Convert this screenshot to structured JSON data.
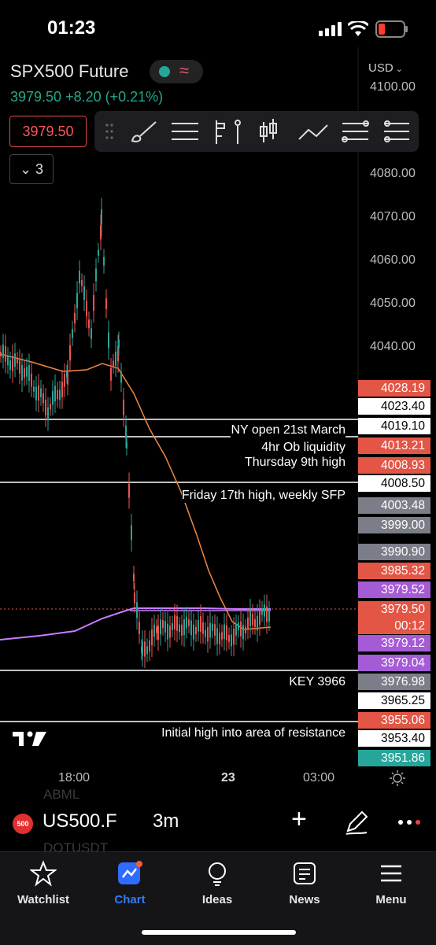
{
  "status_bar": {
    "time": "01:23"
  },
  "header": {
    "symbol": "SPX500 Future",
    "price": "3979.50",
    "change": "+8.20 (+0.21%)",
    "currency": "USD",
    "price_box": "3979.50",
    "indicator_count": "3"
  },
  "toolbar": {
    "icons": [
      "drag-handle-icon",
      "brush-icon",
      "lines-icon",
      "pitchfork-icon",
      "candles-icon",
      "pattern-icon",
      "fib-icon",
      "gann-icon"
    ]
  },
  "axis": {
    "y_ticks": [
      "4100.00",
      "4090.00",
      "4080.00",
      "4070.00",
      "4060.00",
      "4050.00",
      "4040.00"
    ],
    "x_ticks": [
      "18:00",
      "23",
      "03:00"
    ]
  },
  "price_labels": [
    {
      "text": "4028.19",
      "bg": "#e35545",
      "fg": "#ffffff"
    },
    {
      "text": "4023.40",
      "bg": "#ffffff",
      "fg": "#000000"
    },
    {
      "text": "4019.10",
      "bg": "#ffffff",
      "fg": "#000000"
    },
    {
      "text": "4013.21",
      "bg": "#e35545",
      "fg": "#ffffff"
    },
    {
      "text": "4008.93",
      "bg": "#e35545",
      "fg": "#ffffff"
    },
    {
      "text": "4008.50",
      "bg": "#ffffff",
      "fg": "#000000"
    },
    {
      "text": "4003.48",
      "bg": "#7b7e88",
      "fg": "#ffffff"
    },
    {
      "text": "3999.00",
      "bg": "#7b7e88",
      "fg": "#ffffff"
    },
    {
      "text": "3990.90",
      "bg": "#7b7e88",
      "fg": "#ffffff"
    },
    {
      "text": "3985.32",
      "bg": "#e35545",
      "fg": "#ffffff"
    },
    {
      "text": "3979.52",
      "bg": "#a55ad6",
      "fg": "#ffffff"
    },
    {
      "text": "3979.50",
      "bg": "#e35545",
      "fg": "#ffffff"
    },
    {
      "text": "00:12",
      "bg": "#e35545",
      "fg": "#ffffff"
    },
    {
      "text": "3979.12",
      "bg": "#a55ad6",
      "fg": "#ffffff"
    },
    {
      "text": "3979.04",
      "bg": "#a55ad6",
      "fg": "#ffffff"
    },
    {
      "text": "3976.98",
      "bg": "#7b7e88",
      "fg": "#ffffff"
    },
    {
      "text": "3965.25",
      "bg": "#ffffff",
      "fg": "#000000"
    },
    {
      "text": "3955.06",
      "bg": "#e35545",
      "fg": "#ffffff"
    },
    {
      "text": "3953.40",
      "bg": "#ffffff",
      "fg": "#000000"
    },
    {
      "text": "3951.86",
      "bg": "#26a69a",
      "fg": "#ffffff"
    }
  ],
  "annotations": {
    "ny_open": "NY open 21st March",
    "ob_liquidity": "4hr Ob liquidity",
    "thursday": "Thursday 9th high",
    "friday": "Friday 17th high, weekly SFP",
    "key": "KEY 3966",
    "initial": "Initial high into area of resistance"
  },
  "symbol_bar": {
    "badge": "500",
    "ticker": "US500.F",
    "interval": "3m",
    "ghost_above": "ABML",
    "ghost_below": "DOTUSDT"
  },
  "nav": {
    "items": [
      {
        "label": "Watchlist",
        "icon": "star-icon",
        "active": false
      },
      {
        "label": "Chart",
        "icon": "chart-icon",
        "active": true
      },
      {
        "label": "Ideas",
        "icon": "lightbulb-icon",
        "active": false
      },
      {
        "label": "News",
        "icon": "news-icon",
        "active": false
      },
      {
        "label": "Menu",
        "icon": "hamburger-icon",
        "active": false
      }
    ]
  },
  "colors": {
    "up": "#26a69a",
    "down": "#ef5350",
    "accent": "#2962ff",
    "ma": "#f0883e",
    "vwap": "#c77dff"
  }
}
